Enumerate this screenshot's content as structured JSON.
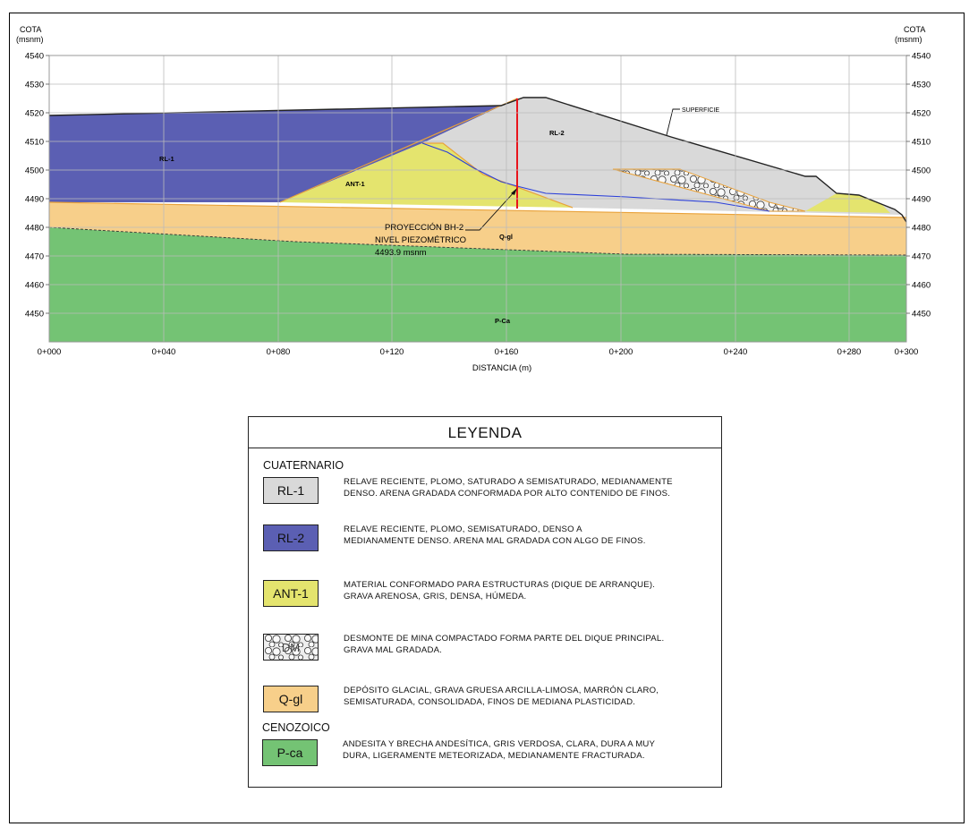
{
  "colors": {
    "rl1_fill": "#d9d9d9",
    "rl2_fill": "#5b5fb3",
    "ant1_fill": "#e4e46e",
    "qgl_fill": "#f7cf8a",
    "pca_fill": "#74c374",
    "dm_fill": "#e6e6e6",
    "bh_line": "#e8141c",
    "piezo_line": "#2b3fd9",
    "contact_line": "#e9a23a"
  },
  "section": {
    "cota_label_left": "COTA",
    "cota_unit_left": "(msnm)",
    "cota_label_right": "COTA",
    "cota_unit_right": "(msnm)",
    "x_axis_title": "DISTANCIA (m)",
    "y_ticks": [
      "4540",
      "4530",
      "4520",
      "4510",
      "4500",
      "4490",
      "4480",
      "4470",
      "4460",
      "4450"
    ],
    "x_ticks": [
      "0+000",
      "0+040",
      "0+080",
      "0+120",
      "0+160",
      "0+200",
      "0+240",
      "0+280",
      "0+300"
    ],
    "unit_labels": {
      "rl1": "RL-1",
      "rl2": "RL-2",
      "ant1": "ANT-1",
      "qgl": "Q-gl",
      "pca": "P-Ca"
    },
    "superficie_label": "SUPERFICIE",
    "bh_label_line1": "PROYECCIÓN BH-2",
    "bh_label_line2": "NIVEL PIEZOMÉTRICO",
    "bh_label_line3": "4493.9  msnm"
  },
  "legend": {
    "title": "LEYENDA",
    "category_quaternary": "CUATERNARIO",
    "category_cenozoic": "CENOZOICO",
    "items": [
      {
        "code": "RL-1",
        "line1": "RELAVE RECIENTE, PLOMO, SATURADO A SEMISATURADO, MEDIANAMENTE",
        "line2": "DENSO. ARENA GRADADA CONFORMADA POR ALTO CONTENIDO DE FINOS."
      },
      {
        "code": "RL-2",
        "line1": "RELAVE RECIENTE, PLOMO, SEMISATURADO, DENSO A",
        "line2": "MEDIANAMENTE DENSO. ARENA MAL GRADADA CON ALGO DE FINOS."
      },
      {
        "code": "ANT-1",
        "line1": "MATERIAL CONFORMADO PARA ESTRUCTURAS (DIQUE DE ARRANQUE).",
        "line2": "GRAVA ARENOSA, GRIS, DENSA, HÚMEDA."
      },
      {
        "code": "DM",
        "line1": "DESMONTE DE MINA COMPACTADO FORMA PARTE DEL DIQUE PRINCIPAL.",
        "line2": "GRAVA MAL GRADADA."
      },
      {
        "code": "Q-gl",
        "line1": "DEPÓSITO GLACIAL, GRAVA GRUESA ARCILLA-LIMOSA, MARRÓN CLARO,",
        "line2": "SEMISATURADA, CONSOLIDADA, FINOS DE MEDIANA PLASTICIDAD."
      },
      {
        "code": "P-ca",
        "line1": "ANDESITA Y BRECHA ANDESÍTICA, GRIS VERDOSA, CLARA, DURA A MUY",
        "line2": "DURA, LIGERAMENTE METEORIZADA, MEDIANAMENTE FRACTURADA."
      }
    ]
  }
}
